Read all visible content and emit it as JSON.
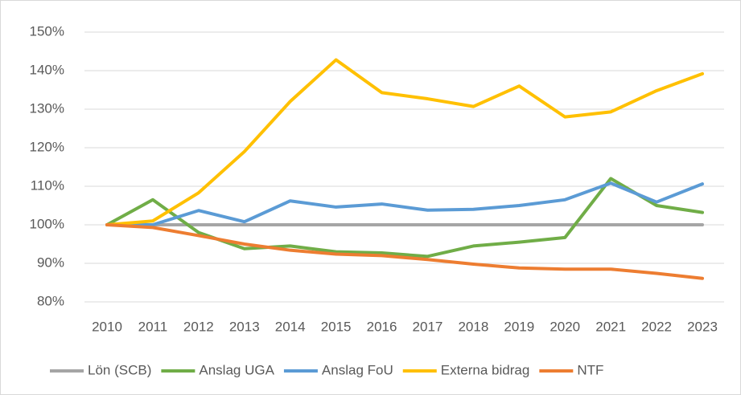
{
  "chart_data": {
    "type": "line",
    "categories": [
      "2010",
      "2011",
      "2012",
      "2013",
      "2014",
      "2015",
      "2016",
      "2017",
      "2018",
      "2019",
      "2020",
      "2021",
      "2022",
      "2023"
    ],
    "series": [
      {
        "name": "Lön (SCB)",
        "color": "#a5a5a5",
        "values": [
          100,
          100,
          100,
          100,
          100,
          100,
          100,
          100,
          100,
          100,
          100,
          100,
          100,
          100
        ]
      },
      {
        "name": "Anslag UGA",
        "color": "#70ad47",
        "values": [
          100,
          106.5,
          98,
          93.8,
          94.5,
          93,
          92.7,
          91.8,
          94.5,
          95.5,
          96.7,
          112,
          105,
          103.2
        ]
      },
      {
        "name": "Anslag FoU",
        "color": "#5b9bd5",
        "values": [
          100,
          100,
          103.7,
          100.8,
          106.2,
          104.6,
          105.4,
          103.8,
          104,
          105,
          106.5,
          110.8,
          105.9,
          110.6
        ]
      },
      {
        "name": "Externa bidrag",
        "color": "#ffc000",
        "values": [
          100,
          101,
          108.3,
          119,
          132,
          142.8,
          134.3,
          132.7,
          130.7,
          136,
          128,
          129.3,
          134.8,
          139.2
        ]
      },
      {
        "name": "NTF",
        "color": "#ed7d31",
        "values": [
          100,
          99.3,
          97.2,
          95,
          93.4,
          92.4,
          92,
          91,
          89.8,
          88.8,
          88.5,
          88.5,
          87.4,
          86.1
        ]
      }
    ],
    "ylim": [
      80,
      150
    ],
    "yticks": [
      {
        "value": 80,
        "label": "80%"
      },
      {
        "value": 90,
        "label": "90%"
      },
      {
        "value": 100,
        "label": "100%"
      },
      {
        "value": 110,
        "label": "110%"
      },
      {
        "value": 120,
        "label": "120%"
      },
      {
        "value": 130,
        "label": "130%"
      },
      {
        "value": 140,
        "label": "140%"
      },
      {
        "value": 150,
        "label": "150%"
      }
    ],
    "grid": true,
    "legend": "bottom"
  }
}
